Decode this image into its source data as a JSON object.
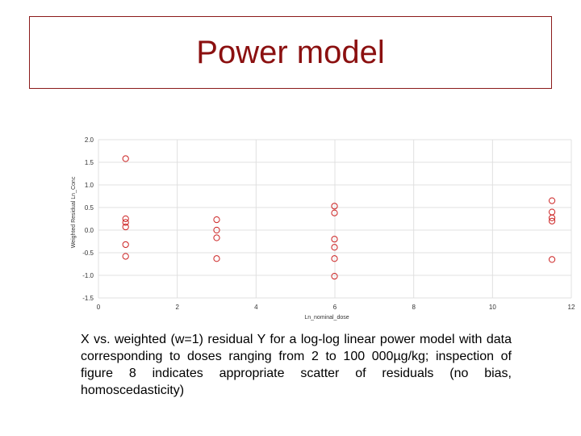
{
  "slide": {
    "title": "Power model",
    "caption": "X vs. weighted (w=1) residual Y for a log-log linear power model with data corresponding to doses ranging from 2 to 100 000µg/kg; inspection of figure 8 indicates appropriate scatter of residuals (no bias, homoscedasticity)"
  },
  "colors": {
    "title": "#8b1010",
    "border": "#8b1a1a",
    "marker": "#cc2222",
    "grid": "#e0e0e0"
  },
  "chart_data": {
    "type": "scatter",
    "title": "",
    "xlabel": "Ln_nominal_dose",
    "ylabel": "Weighted Residual Ln_Conc",
    "xlim": [
      0,
      12
    ],
    "ylim": [
      -1.5,
      2.0
    ],
    "xticks": [
      "0",
      "2",
      "4",
      "6",
      "8",
      "10",
      "12"
    ],
    "yticks": [
      "-1.5",
      "-1.0",
      "-0.5",
      "0.0",
      "0.5",
      "1.0",
      "1.5",
      "2.0"
    ],
    "grid": true,
    "marker": "open-circle",
    "points": [
      [
        0.69,
        1.58
      ],
      [
        0.69,
        0.25
      ],
      [
        0.69,
        0.17
      ],
      [
        0.69,
        0.07
      ],
      [
        0.69,
        -0.32
      ],
      [
        0.69,
        -0.58
      ],
      [
        3.0,
        0.23
      ],
      [
        3.0,
        0.0
      ],
      [
        3.0,
        -0.17
      ],
      [
        3.0,
        -0.63
      ],
      [
        5.99,
        0.53
      ],
      [
        5.99,
        0.38
      ],
      [
        5.99,
        -0.2
      ],
      [
        5.99,
        -0.38
      ],
      [
        5.99,
        -0.63
      ],
      [
        5.99,
        -1.02
      ],
      [
        11.51,
        0.65
      ],
      [
        11.51,
        0.4
      ],
      [
        11.51,
        0.27
      ],
      [
        11.51,
        0.2
      ],
      [
        11.51,
        -0.65
      ]
    ]
  }
}
